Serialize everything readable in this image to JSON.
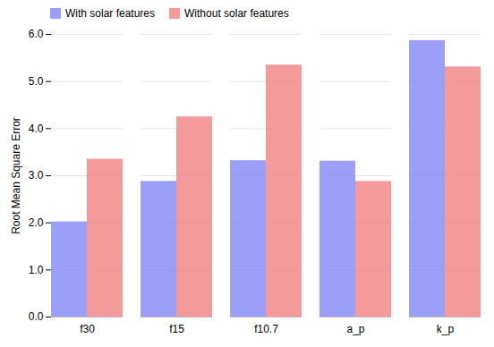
{
  "chart_data": {
    "type": "bar",
    "categories": [
      "f30",
      "f15",
      "f10.7",
      "a_p",
      "k_p"
    ],
    "series": [
      {
        "name": "With solar features",
        "color": "#7b7ff5",
        "values": [
          2.02,
          2.88,
          3.32,
          3.31,
          5.87
        ]
      },
      {
        "name": "Without solar features",
        "color": "#f07878",
        "values": [
          3.35,
          4.25,
          5.35,
          2.88,
          5.31
        ]
      }
    ],
    "ylabel": "Root Mean Square Error",
    "ylim": [
      0,
      6
    ],
    "yticks": [
      0,
      1,
      2,
      3,
      4,
      5,
      6
    ],
    "grid": true,
    "legend": "upper left"
  }
}
